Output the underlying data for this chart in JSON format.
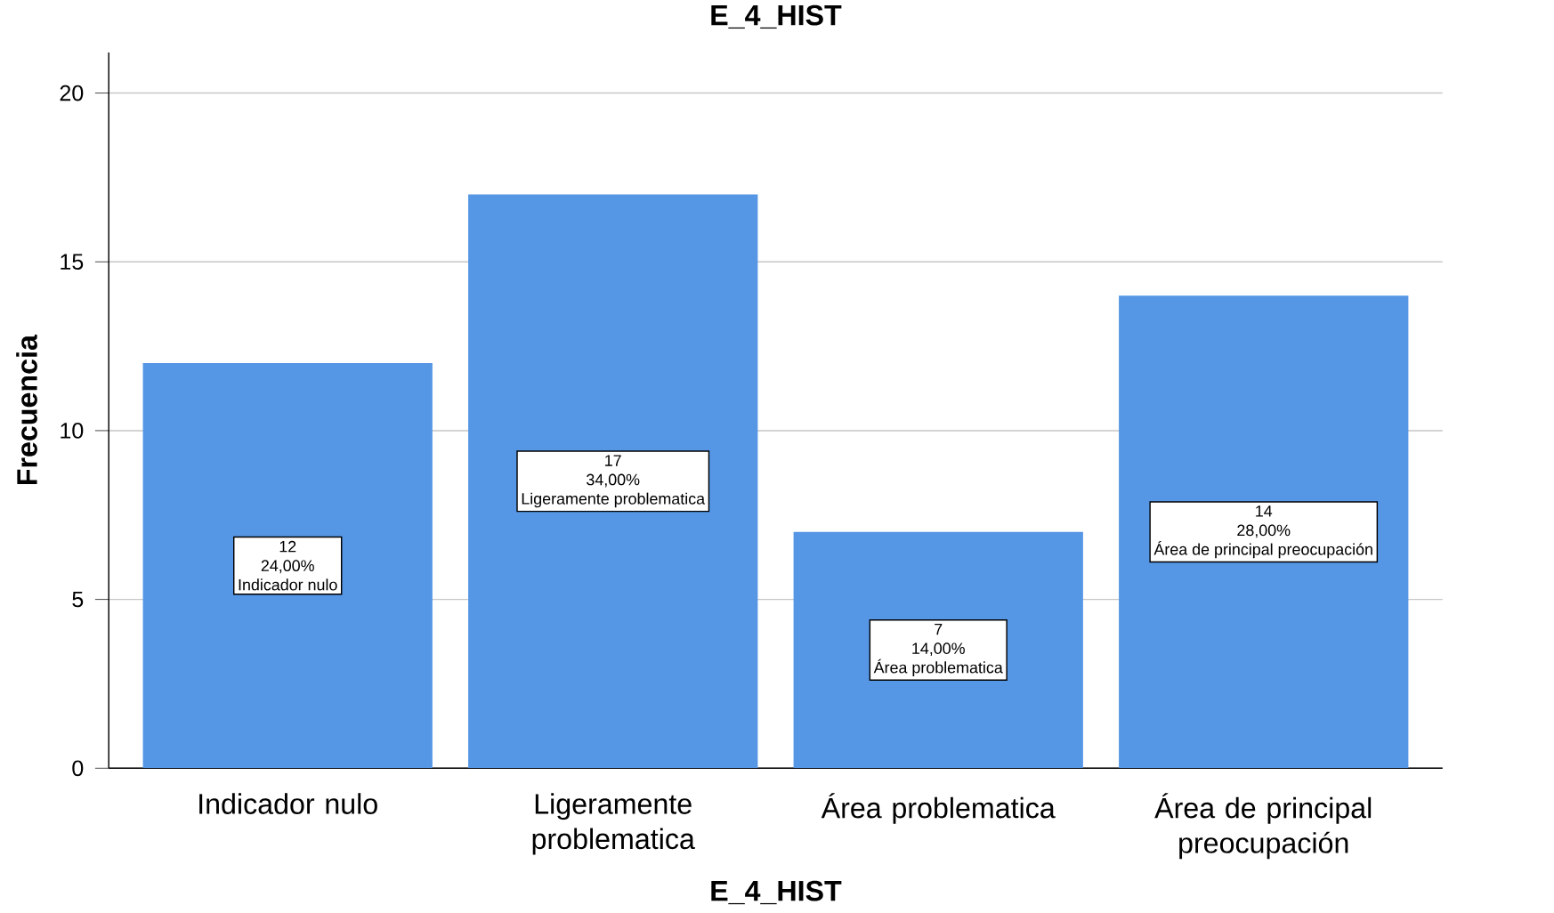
{
  "chart_data": {
    "type": "bar",
    "title": "E_4_HIST",
    "xlabel": "E_4_HIST",
    "ylabel": "Frecuencia",
    "categories": [
      "Indicador nulo",
      "Ligeramente problematica",
      "Área problematica",
      "Área de principal preocupación"
    ],
    "values": [
      12,
      17,
      7,
      14
    ],
    "color": "#5596e5",
    "value_labels": [
      "12",
      "17",
      "7",
      "14"
    ],
    "annotations": [
      "24,00%",
      "Indicador nulo",
      "34,00%",
      "Ligeramente problematica",
      "14,00%",
      "Área problematica",
      "28,00%",
      "Área de principal preocupación"
    ],
    "ylim": [
      0,
      21.2
    ],
    "yticks": [
      0,
      5,
      10,
      15,
      20
    ],
    "grid": "y"
  }
}
